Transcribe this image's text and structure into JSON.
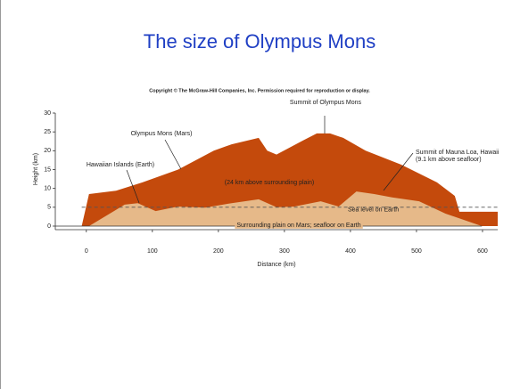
{
  "chart_data": {
    "type": "area",
    "title": "The size of Olympus Mons",
    "subtitle": "Copyright © The McGraw-Hill Companies, Inc. Permission required for reproduction or display.",
    "x_label": "Distance (km)",
    "y_label": "Height (km)",
    "xlim": [
      -47,
      623
    ],
    "ylim": [
      0,
      30
    ],
    "xticks": [
      0,
      100,
      200,
      300,
      400,
      500,
      600
    ],
    "yticks": [
      0,
      5,
      10,
      15,
      20,
      25,
      30
    ],
    "series": [
      {
        "name": "Olympus Mons (Mars)",
        "color": "#c44a0c",
        "x": [
          -47,
          -7,
          4,
          45,
          85,
          139,
          193,
          220,
          261,
          274,
          288,
          328,
          349,
          369,
          389,
          423,
          477,
          531,
          558,
          565,
          623
        ],
        "values": [
          0,
          0,
          8.5,
          9.4,
          11.6,
          15,
          20,
          21.7,
          23.4,
          20,
          19,
          22.7,
          24.6,
          24.6,
          23.4,
          20,
          16.3,
          11.6,
          8,
          3.8,
          3.8
        ]
      },
      {
        "name": "Hawaiian Islands (Earth)",
        "color": "#e6b989",
        "x": [
          4,
          58,
          78,
          105,
          139,
          180,
          220,
          261,
          288,
          315,
          355,
          382,
          409,
          436,
          463,
          504,
          544,
          599
        ],
        "values": [
          0,
          5.7,
          6.1,
          4,
          5.2,
          4.9,
          6.1,
          7.1,
          5,
          5.2,
          6.6,
          5.2,
          9.2,
          8.5,
          7.6,
          6.6,
          3.3,
          0
        ]
      }
    ],
    "sea_level": {
      "label": "Sea level on Earth",
      "value": 5
    },
    "annotations": [
      "Summit of Olympus Mons",
      "(24 km above surrounding plain)",
      "Summit of Mauna Loa, Hawaii",
      "(9.1 km above seafloor)",
      "Surrounding plain on Mars; seafloor on Earth"
    ]
  }
}
